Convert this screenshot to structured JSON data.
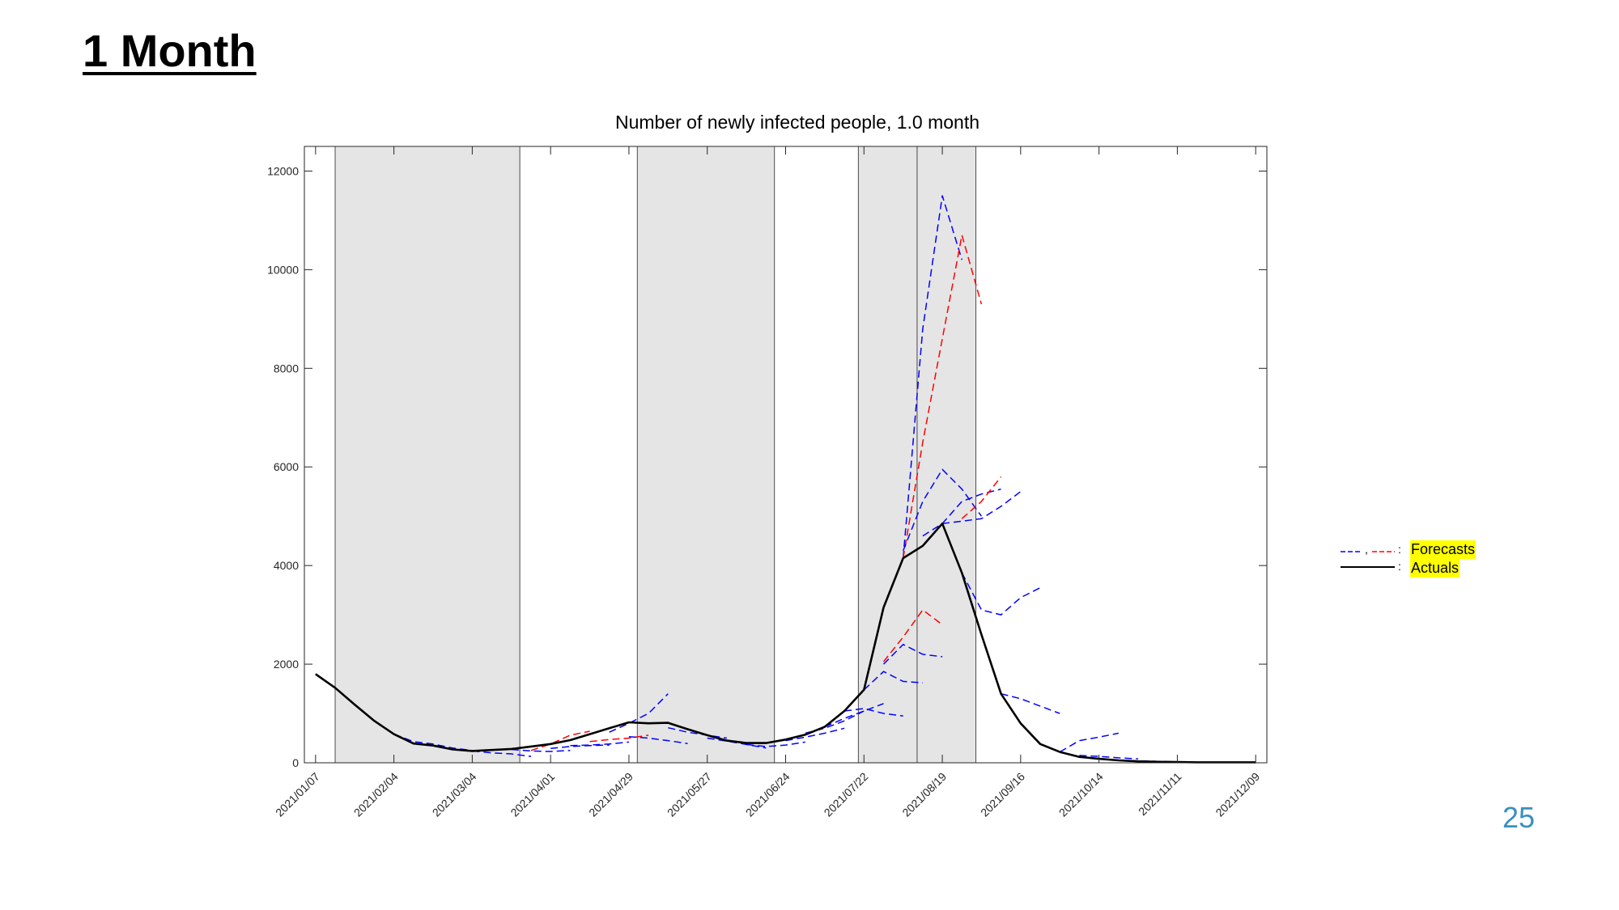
{
  "slide": {
    "title": "1 Month",
    "page_number": "25"
  },
  "legend": {
    "forecasts_label": "Forecasts",
    "actuals_label": "Actuals"
  },
  "colors": {
    "actuals": "#000000",
    "forecast_blue": "#0000ff",
    "forecast_red": "#ff0000",
    "shading": "#e5e5e5",
    "page_number": "#3a8fbf"
  },
  "chart_data": {
    "type": "line",
    "title": "Number of newly infected people, 1.0 month",
    "xlabel": "",
    "ylabel": "",
    "xlim": [
      "2021-01-03",
      "2021-12-13"
    ],
    "ylim": [
      0,
      12500
    ],
    "x_ticks": [
      "2021/01/07",
      "2021/02/04",
      "2021/03/04",
      "2021/04/01",
      "2021/04/29",
      "2021/05/27",
      "2021/06/24",
      "2021/07/22",
      "2021/08/19",
      "2021/09/16",
      "2021/10/14",
      "2021/11/11",
      "2021/12/09"
    ],
    "y_ticks": [
      0,
      2000,
      4000,
      6000,
      8000,
      10000,
      12000
    ],
    "grid": false,
    "legend_position": "outside-right",
    "shaded_periods": [
      [
        "2021-01-14",
        "2021-03-21"
      ],
      [
        "2021-05-02",
        "2021-06-20"
      ],
      [
        "2021-07-20",
        "2021-08-10"
      ],
      [
        "2021-08-10",
        "2021-08-31"
      ]
    ],
    "series": [
      {
        "name": "Actuals",
        "style": "solid",
        "color": "#000000",
        "x": [
          "2021-01-07",
          "2021-01-14",
          "2021-01-21",
          "2021-01-28",
          "2021-02-04",
          "2021-02-11",
          "2021-02-18",
          "2021-02-25",
          "2021-03-04",
          "2021-03-11",
          "2021-03-18",
          "2021-03-25",
          "2021-04-01",
          "2021-04-08",
          "2021-04-15",
          "2021-04-22",
          "2021-04-29",
          "2021-05-06",
          "2021-05-13",
          "2021-05-20",
          "2021-05-27",
          "2021-06-03",
          "2021-06-10",
          "2021-06-17",
          "2021-06-24",
          "2021-07-01",
          "2021-07-08",
          "2021-07-15",
          "2021-07-22",
          "2021-07-29",
          "2021-08-05",
          "2021-08-12",
          "2021-08-19",
          "2021-08-26",
          "2021-09-02",
          "2021-09-09",
          "2021-09-16",
          "2021-09-23",
          "2021-09-30",
          "2021-10-07",
          "2021-10-14",
          "2021-10-21",
          "2021-10-28",
          "2021-11-04",
          "2021-11-11",
          "2021-11-18",
          "2021-11-25",
          "2021-12-02",
          "2021-12-09"
        ],
        "values": [
          1800,
          1520,
          1180,
          850,
          580,
          390,
          350,
          270,
          240,
          260,
          280,
          330,
          380,
          460,
          580,
          700,
          820,
          800,
          810,
          680,
          560,
          450,
          400,
          400,
          470,
          570,
          730,
          1050,
          1480,
          3150,
          4150,
          4400,
          4850,
          3850,
          2600,
          1400,
          800,
          380,
          220,
          120,
          80,
          50,
          30,
          20,
          15,
          10,
          10,
          10,
          10
        ]
      },
      {
        "name": "",
        "style": "dashed",
        "color": "#0000ff",
        "x": [
          "2021-02-04",
          "2021-02-11",
          "2021-02-18",
          "2021-02-25",
          "2021-03-04"
        ],
        "values": [
          580,
          430,
          380,
          300,
          250
        ]
      },
      {
        "name": "",
        "style": "dashed",
        "color": "#0000ff",
        "x": [
          "2021-03-04",
          "2021-03-11",
          "2021-03-18",
          "2021-03-25"
        ],
        "values": [
          240,
          200,
          180,
          130
        ]
      },
      {
        "name": "",
        "style": "dashed",
        "color": "#0000ff",
        "x": [
          "2021-03-18",
          "2021-03-25",
          "2021-04-01",
          "2021-04-08"
        ],
        "values": [
          270,
          240,
          230,
          250
        ]
      },
      {
        "name": "",
        "style": "dashed",
        "color": "#ff0000",
        "x": [
          "2021-03-25",
          "2021-04-01",
          "2021-04-08",
          "2021-04-15"
        ],
        "values": [
          250,
          380,
          560,
          640
        ]
      },
      {
        "name": "",
        "style": "dashed",
        "color": "#0000ff",
        "x": [
          "2021-04-01",
          "2021-04-08",
          "2021-04-15",
          "2021-04-22"
        ],
        "values": [
          290,
          330,
          350,
          360
        ]
      },
      {
        "name": "",
        "style": "dashed",
        "color": "#0000ff",
        "x": [
          "2021-04-08",
          "2021-04-15",
          "2021-04-22",
          "2021-04-29"
        ],
        "values": [
          350,
          360,
          380,
          420
        ]
      },
      {
        "name": "",
        "style": "dashed",
        "color": "#ff0000",
        "x": [
          "2021-04-15",
          "2021-04-22",
          "2021-04-29",
          "2021-05-06"
        ],
        "values": [
          430,
          470,
          500,
          560
        ]
      },
      {
        "name": "",
        "style": "dashed",
        "color": "#0000ff",
        "x": [
          "2021-04-22",
          "2021-04-29",
          "2021-05-06",
          "2021-05-13"
        ],
        "values": [
          620,
          800,
          1000,
          1400
        ]
      },
      {
        "name": "",
        "style": "dashed",
        "color": "#0000ff",
        "x": [
          "2021-04-29",
          "2021-05-06",
          "2021-05-13",
          "2021-05-20"
        ],
        "values": [
          530,
          500,
          450,
          390
        ]
      },
      {
        "name": "",
        "style": "dashed",
        "color": "#0000ff",
        "x": [
          "2021-05-13",
          "2021-05-20",
          "2021-05-27",
          "2021-06-03"
        ],
        "values": [
          710,
          620,
          560,
          500
        ]
      },
      {
        "name": "",
        "style": "dashed",
        "color": "#0000ff",
        "x": [
          "2021-05-27",
          "2021-06-03",
          "2021-06-10",
          "2021-06-17"
        ],
        "values": [
          500,
          440,
          370,
          300
        ]
      },
      {
        "name": "",
        "style": "dashed",
        "color": "#0000ff",
        "x": [
          "2021-06-10",
          "2021-06-17",
          "2021-06-24",
          "2021-07-01"
        ],
        "values": [
          370,
          330,
          360,
          420
        ]
      },
      {
        "name": "",
        "style": "dashed",
        "color": "#0000ff",
        "x": [
          "2021-06-24",
          "2021-07-01",
          "2021-07-08",
          "2021-07-15"
        ],
        "values": [
          450,
          520,
          600,
          700
        ]
      },
      {
        "name": "",
        "style": "dashed",
        "color": "#0000ff",
        "x": [
          "2021-07-01",
          "2021-07-08",
          "2021-07-15",
          "2021-07-22"
        ],
        "values": [
          600,
          700,
          850,
          1050
        ]
      },
      {
        "name": "",
        "style": "dashed",
        "color": "#0000ff",
        "x": [
          "2021-07-08",
          "2021-07-15",
          "2021-07-22",
          "2021-07-29"
        ],
        "values": [
          730,
          900,
          1050,
          1200
        ]
      },
      {
        "name": "",
        "style": "dashed",
        "color": "#0000ff",
        "x": [
          "2021-07-15",
          "2021-07-22",
          "2021-07-29",
          "2021-08-05"
        ],
        "values": [
          1050,
          1100,
          1000,
          950
        ]
      },
      {
        "name": "",
        "style": "dashed",
        "color": "#0000ff",
        "x": [
          "2021-07-22",
          "2021-07-29",
          "2021-08-05",
          "2021-08-12"
        ],
        "values": [
          1480,
          1850,
          1650,
          1620
        ]
      },
      {
        "name": "",
        "style": "dashed",
        "color": "#ff0000",
        "x": [
          "2021-07-29",
          "2021-08-05",
          "2021-08-12",
          "2021-08-19"
        ],
        "values": [
          2050,
          2550,
          3100,
          2800
        ]
      },
      {
        "name": "",
        "style": "dashed",
        "color": "#0000ff",
        "x": [
          "2021-07-29",
          "2021-08-05",
          "2021-08-12",
          "2021-08-19"
        ],
        "values": [
          2000,
          2400,
          2200,
          2150
        ]
      },
      {
        "name": "",
        "style": "dashed",
        "color": "#0000ff",
        "x": [
          "2021-08-05",
          "2021-08-12",
          "2021-08-19",
          "2021-08-26"
        ],
        "values": [
          4150,
          8800,
          11500,
          10200
        ]
      },
      {
        "name": "",
        "style": "dashed",
        "color": "#ff0000",
        "x": [
          "2021-08-05",
          "2021-08-12",
          "2021-08-19",
          "2021-08-26",
          "2021-09-02"
        ],
        "values": [
          4150,
          6500,
          8600,
          10700,
          9300
        ]
      },
      {
        "name": "",
        "style": "dashed",
        "color": "#0000ff",
        "x": [
          "2021-08-05",
          "2021-08-12",
          "2021-08-19",
          "2021-08-26",
          "2021-09-02"
        ],
        "values": [
          4300,
          5300,
          5950,
          5550,
          5000
        ]
      },
      {
        "name": "",
        "style": "dashed",
        "color": "#0000ff",
        "x": [
          "2021-08-12",
          "2021-08-19",
          "2021-08-26",
          "2021-09-02",
          "2021-09-09"
        ],
        "values": [
          4600,
          4850,
          5300,
          5450,
          5550
        ]
      },
      {
        "name": "",
        "style": "dashed",
        "color": "#0000ff",
        "x": [
          "2021-08-19",
          "2021-08-26",
          "2021-09-02",
          "2021-09-09",
          "2021-09-16"
        ],
        "values": [
          4850,
          4900,
          4950,
          5200,
          5500
        ]
      },
      {
        "name": "",
        "style": "dashed",
        "color": "#ff0000",
        "x": [
          "2021-08-26",
          "2021-09-02",
          "2021-09-09"
        ],
        "values": [
          4950,
          5300,
          5800
        ]
      },
      {
        "name": "",
        "style": "dashed",
        "color": "#0000ff",
        "x": [
          "2021-08-26",
          "2021-09-02",
          "2021-09-09",
          "2021-09-16",
          "2021-09-23"
        ],
        "values": [
          3850,
          3100,
          3000,
          3350,
          3550
        ]
      },
      {
        "name": "",
        "style": "dashed",
        "color": "#0000ff",
        "x": [
          "2021-09-09",
          "2021-09-16",
          "2021-09-23",
          "2021-09-30"
        ],
        "values": [
          1400,
          1300,
          1150,
          1000
        ]
      },
      {
        "name": "",
        "style": "dashed",
        "color": "#0000ff",
        "x": [
          "2021-09-30",
          "2021-10-07",
          "2021-10-14",
          "2021-10-21"
        ],
        "values": [
          220,
          450,
          520,
          600
        ]
      },
      {
        "name": "",
        "style": "dashed",
        "color": "#0000ff",
        "x": [
          "2021-10-07",
          "2021-10-14",
          "2021-10-21",
          "2021-10-28"
        ],
        "values": [
          150,
          130,
          100,
          80
        ]
      },
      {
        "name": "",
        "style": "dashed",
        "color": "#0000ff",
        "x": [
          "2021-10-21",
          "2021-10-28",
          "2021-11-04",
          "2021-11-11"
        ],
        "values": [
          50,
          40,
          30,
          20
        ]
      }
    ]
  }
}
